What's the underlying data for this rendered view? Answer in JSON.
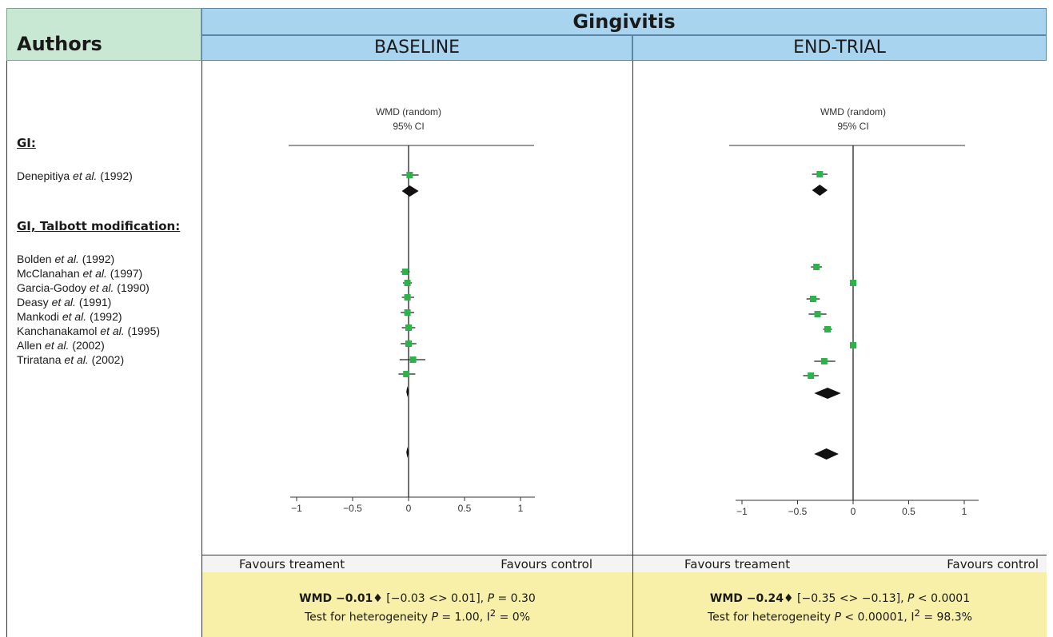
{
  "header": {
    "authors": "Authors",
    "title": "Gingivitis",
    "baseline": "BASELINE",
    "end_trial": "END-TRIAL"
  },
  "groups": [
    {
      "heading": "GI:",
      "studies": [
        {
          "name": "Denepitiya",
          "etal": "et al.",
          "year": "(1992)"
        }
      ]
    },
    {
      "heading": "GI, Talbott modification:",
      "studies": [
        {
          "name": "Bolden",
          "etal": "et al.",
          "year": "(1992)"
        },
        {
          "name": "McClanahan",
          "etal": "et al.",
          "year": "(1997)"
        },
        {
          "name": "Garcia-Godoy",
          "etal": "et al.",
          "year": "(1990)"
        },
        {
          "name": "Deasy",
          "etal": "et al.",
          "year": "(1991)"
        },
        {
          "name": "Mankodi",
          "etal": "et al.",
          "year": "(1992)"
        },
        {
          "name": "Kanchanakamol",
          "etal": "et al.",
          "year": "(1995)"
        },
        {
          "name": "Allen",
          "etal": "et al.",
          "year": "(2002)"
        },
        {
          "name": "Triratana",
          "etal": "et al.",
          "year": "(2002)"
        }
      ]
    }
  ],
  "chart_data": [
    {
      "type": "scatter",
      "panel": "BASELINE",
      "title": "WMD (random)",
      "subtitle": "95% CI",
      "xlim": [
        -1,
        1
      ],
      "xticks": [
        "-1",
        "-0.5",
        "0",
        "0.5",
        "1"
      ],
      "xlabel_left": "Favours treament",
      "xlabel_right": "Favours control",
      "studies": [
        {
          "estimate": 0.01,
          "ci": [
            -0.06,
            0.09
          ]
        },
        {
          "estimate": -0.03,
          "ci": [
            -0.07,
            0.01
          ]
        },
        {
          "estimate": -0.01,
          "ci": [
            -0.05,
            0.03
          ]
        },
        {
          "estimate": -0.01,
          "ci": [
            -0.06,
            0.05
          ]
        },
        {
          "estimate": -0.01,
          "ci": [
            -0.07,
            0.05
          ]
        },
        {
          "estimate": 0.0,
          "ci": [
            -0.06,
            0.06
          ]
        },
        {
          "estimate": 0.0,
          "ci": [
            -0.07,
            0.07
          ]
        },
        {
          "estimate": 0.04,
          "ci": [
            -0.08,
            0.15
          ]
        },
        {
          "estimate": -0.02,
          "ci": [
            -0.09,
            0.06
          ]
        }
      ],
      "pooled": [
        {
          "estimate": 0.01,
          "ci": [
            -0.06,
            0.09
          ]
        },
        {
          "estimate": -0.01,
          "ci": [
            -0.02,
            0.0
          ]
        },
        {
          "estimate": -0.01,
          "ci": [
            -0.02,
            0.0
          ]
        }
      ],
      "summary": {
        "wmd": "WMD −0.01♦",
        "ci_text": " [−0.03 <> 0.01], ",
        "p_label": "P",
        "p_text": " = 0.30",
        "heterogeneity_prefix": "Test for heterogeneity ",
        "het_p_text": " = 1.00, I",
        "i2_sup": "2",
        "het_i2_text": " = 0%"
      }
    },
    {
      "type": "scatter",
      "panel": "END-TRIAL",
      "title": "WMD (random)",
      "subtitle": "95% CI",
      "xlim": [
        -1,
        1
      ],
      "xticks": [
        "-1",
        "-0.5",
        "0",
        "0.5",
        "1"
      ],
      "xlabel_left": "Favours treament",
      "xlabel_right": "Favours control",
      "studies": [
        {
          "estimate": -0.3,
          "ci": [
            -0.37,
            -0.23
          ]
        },
        {
          "estimate": -0.33,
          "ci": [
            -0.38,
            -0.28
          ]
        },
        {
          "estimate": 0.0,
          "ci": [
            -0.02,
            0.02
          ]
        },
        {
          "estimate": -0.36,
          "ci": [
            -0.42,
            -0.3
          ]
        },
        {
          "estimate": -0.32,
          "ci": [
            -0.4,
            -0.24
          ]
        },
        {
          "estimate": -0.23,
          "ci": [
            -0.27,
            -0.19
          ]
        },
        {
          "estimate": 0.0,
          "ci": [
            -0.02,
            0.02
          ]
        },
        {
          "estimate": -0.26,
          "ci": [
            -0.35,
            -0.16
          ]
        },
        {
          "estimate": -0.38,
          "ci": [
            -0.45,
            -0.31
          ]
        }
      ],
      "pooled": [
        {
          "estimate": -0.3,
          "ci": [
            -0.37,
            -0.23
          ]
        },
        {
          "estimate": -0.23,
          "ci": [
            -0.35,
            -0.11
          ]
        },
        {
          "estimate": -0.24,
          "ci": [
            -0.35,
            -0.13
          ]
        }
      ],
      "summary": {
        "wmd": "WMD −0.24♦",
        "ci_text": " [−0.35 <> −0.13], ",
        "p_label": "P",
        "p_text": " < 0.0001",
        "heterogeneity_prefix": "Test for heterogeneity ",
        "het_p_text": " < 0.00001, I",
        "i2_sup": "2",
        "het_i2_text": " = 98.3%"
      }
    }
  ]
}
